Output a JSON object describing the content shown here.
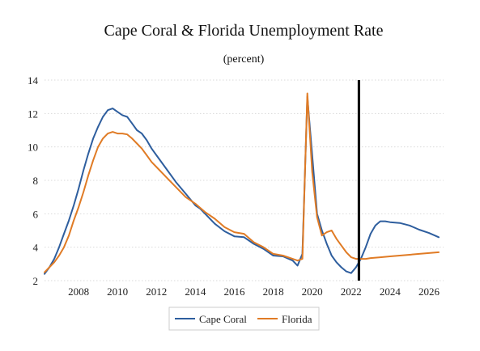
{
  "chart_data": {
    "type": "line",
    "title": "Cape Coral & Florida Unemployment Rate",
    "subtitle": "(percent)",
    "xlabel": "",
    "ylabel": "",
    "xlim": [
      2006.25,
      2026.75
    ],
    "ylim": [
      2,
      14
    ],
    "yticks": [
      2,
      4,
      6,
      8,
      10,
      12,
      14
    ],
    "xticks": [
      2008,
      2010,
      2012,
      2014,
      2016,
      2018,
      2020,
      2022,
      2024,
      2026
    ],
    "grid": "horizontal dotted",
    "legend_position": "bottom-center",
    "vertical_marker_x": 2022.4,
    "series": [
      {
        "name": "Cape Coral",
        "color": "#2e5e9e",
        "x": [
          2006.25,
          2006.5,
          2006.75,
          2007,
          2007.25,
          2007.5,
          2007.75,
          2008,
          2008.25,
          2008.5,
          2008.75,
          2009,
          2009.25,
          2009.5,
          2009.75,
          2010,
          2010.25,
          2010.5,
          2010.75,
          2011,
          2011.25,
          2011.5,
          2011.75,
          2012,
          2012.5,
          2013,
          2013.5,
          2014,
          2014.25,
          2014.5,
          2015,
          2015.5,
          2016,
          2016.5,
          2017,
          2017.5,
          2018,
          2018.5,
          2019,
          2019.25,
          2019.5,
          2019.75,
          2020,
          2020.25,
          2020.5,
          2020.75,
          2021,
          2021.25,
          2021.5,
          2021.75,
          2022,
          2022.25,
          2022.5,
          2022.75,
          2023,
          2023.25,
          2023.5,
          2023.75,
          2024,
          2024.5,
          2025,
          2025.5,
          2026,
          2026.5
        ],
        "values": [
          2.4,
          2.8,
          3.3,
          4.0,
          4.8,
          5.6,
          6.5,
          7.5,
          8.6,
          9.6,
          10.5,
          11.2,
          11.8,
          12.2,
          12.3,
          12.1,
          11.9,
          11.8,
          11.4,
          11.0,
          10.8,
          10.4,
          9.9,
          9.5,
          8.7,
          7.9,
          7.2,
          6.5,
          6.3,
          6.0,
          5.4,
          4.95,
          4.65,
          4.6,
          4.2,
          3.9,
          3.5,
          3.45,
          3.2,
          2.9,
          3.6,
          13.0,
          9.5,
          6.0,
          5.0,
          4.2,
          3.5,
          3.1,
          2.8,
          2.55,
          2.45,
          2.8,
          3.3,
          4.0,
          4.8,
          5.3,
          5.55,
          5.55,
          5.5,
          5.45,
          5.3,
          5.05,
          4.85,
          4.6
        ]
      },
      {
        "name": "Florida",
        "color": "#e07b25",
        "x": [
          2006.25,
          2006.5,
          2006.75,
          2007,
          2007.25,
          2007.5,
          2007.75,
          2008,
          2008.25,
          2008.5,
          2008.75,
          2009,
          2009.25,
          2009.5,
          2009.75,
          2010,
          2010.25,
          2010.5,
          2010.75,
          2011,
          2011.25,
          2011.5,
          2011.75,
          2012,
          2012.5,
          2013,
          2013.5,
          2014,
          2014.5,
          2015,
          2015.5,
          2016,
          2016.5,
          2017,
          2017.5,
          2018,
          2018.5,
          2019,
          2019.25,
          2019.5,
          2019.75,
          2020,
          2020.25,
          2020.5,
          2020.75,
          2021,
          2021.25,
          2021.5,
          2021.75,
          2022,
          2022.25,
          2022.5,
          2022.75,
          2023,
          2023.5,
          2024,
          2024.5,
          2025,
          2025.5,
          2026,
          2026.5
        ],
        "values": [
          2.5,
          2.8,
          3.1,
          3.5,
          4.0,
          4.7,
          5.6,
          6.4,
          7.3,
          8.3,
          9.2,
          10.0,
          10.5,
          10.8,
          10.9,
          10.8,
          10.8,
          10.75,
          10.5,
          10.2,
          9.9,
          9.5,
          9.1,
          8.8,
          8.2,
          7.6,
          7.0,
          6.6,
          6.1,
          5.7,
          5.2,
          4.9,
          4.8,
          4.3,
          4.0,
          3.6,
          3.5,
          3.3,
          3.2,
          3.3,
          13.2,
          8.5,
          5.8,
          4.7,
          4.9,
          5.0,
          4.5,
          4.1,
          3.7,
          3.4,
          3.3,
          3.3,
          3.3,
          3.35,
          3.4,
          3.45,
          3.5,
          3.55,
          3.6,
          3.65,
          3.7
        ]
      }
    ]
  }
}
